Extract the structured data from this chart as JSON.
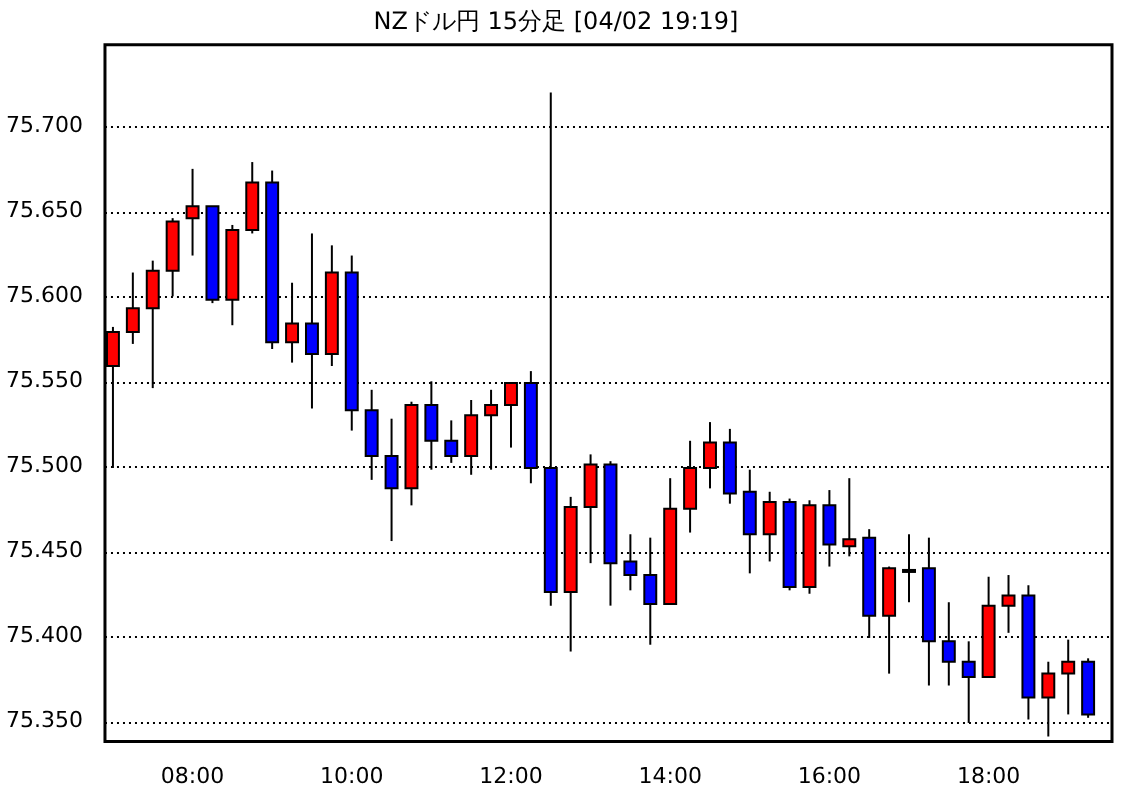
{
  "chart_data": {
    "type": "candlestick",
    "title": "NZドル円 15分足 [04/02 19:19]",
    "x": [
      7,
      7.25,
      7.5,
      7.75,
      8,
      8.25,
      8.5,
      8.75,
      9,
      9.25,
      9.5,
      9.75,
      10,
      10.25,
      10.5,
      10.75,
      11,
      11.25,
      11.5,
      11.75,
      12,
      12.25,
      12.5,
      12.75,
      13,
      13.25,
      13.5,
      13.75,
      14,
      14.25,
      14.5,
      14.75,
      15,
      15.25,
      15.5,
      15.75,
      16,
      16.25,
      16.5,
      16.75,
      17,
      17.25,
      17.5,
      17.75,
      18,
      18.25,
      18.5,
      18.75,
      19,
      19.25
    ],
    "ohlc": [
      [
        75.559,
        75.582,
        75.499,
        75.579
      ],
      [
        75.579,
        75.614,
        75.572,
        75.593
      ],
      [
        75.593,
        75.621,
        75.546,
        75.615
      ],
      [
        75.615,
        75.646,
        75.6,
        75.644
      ],
      [
        75.646,
        75.675,
        75.624,
        75.653
      ],
      [
        75.653,
        75.653,
        75.596,
        75.598
      ],
      [
        75.598,
        75.642,
        75.583,
        75.639
      ],
      [
        75.639,
        75.679,
        75.637,
        75.667
      ],
      [
        75.667,
        75.674,
        75.569,
        75.573
      ],
      [
        75.573,
        75.608,
        75.561,
        75.584
      ],
      [
        75.584,
        75.637,
        75.534,
        75.566
      ],
      [
        75.566,
        75.63,
        75.559,
        75.614
      ],
      [
        75.614,
        75.624,
        75.521,
        75.533
      ],
      [
        75.533,
        75.545,
        75.492,
        75.506
      ],
      [
        75.506,
        75.528,
        75.456,
        75.487
      ],
      [
        75.487,
        75.538,
        75.477,
        75.536
      ],
      [
        75.536,
        75.55,
        75.498,
        75.515
      ],
      [
        75.515,
        75.527,
        75.502,
        75.506
      ],
      [
        75.506,
        75.539,
        75.495,
        75.53
      ],
      [
        75.53,
        75.545,
        75.498,
        75.536
      ],
      [
        75.536,
        75.549,
        75.511,
        75.549
      ],
      [
        75.549,
        75.556,
        75.49,
        75.499
      ],
      [
        75.499,
        75.72,
        75.418,
        75.426
      ],
      [
        75.426,
        75.482,
        75.391,
        75.476
      ],
      [
        75.476,
        75.507,
        75.443,
        75.501
      ],
      [
        75.501,
        75.503,
        75.418,
        75.443
      ],
      [
        75.444,
        75.46,
        75.427,
        75.436
      ],
      [
        75.436,
        75.458,
        75.395,
        75.419
      ],
      [
        75.419,
        75.493,
        75.419,
        75.475
      ],
      [
        75.475,
        75.515,
        75.461,
        75.499
      ],
      [
        75.499,
        75.526,
        75.487,
        75.514
      ],
      [
        75.514,
        75.522,
        75.478,
        75.484
      ],
      [
        75.485,
        75.498,
        75.437,
        75.46
      ],
      [
        75.46,
        75.485,
        75.444,
        75.479
      ],
      [
        75.479,
        75.481,
        75.427,
        75.429
      ],
      [
        75.429,
        75.48,
        75.425,
        75.477
      ],
      [
        75.477,
        75.486,
        75.441,
        75.454
      ],
      [
        75.453,
        75.493,
        75.447,
        75.457
      ],
      [
        75.458,
        75.463,
        75.399,
        75.412
      ],
      [
        75.412,
        75.441,
        75.378,
        75.44
      ],
      [
        75.439,
        75.46,
        75.42,
        75.439
      ],
      [
        75.44,
        75.458,
        75.371,
        75.397
      ],
      [
        75.397,
        75.42,
        75.371,
        75.385
      ],
      [
        75.385,
        75.397,
        75.349,
        75.376
      ],
      [
        75.376,
        75.435,
        75.376,
        75.418
      ],
      [
        75.418,
        75.436,
        75.402,
        75.424
      ],
      [
        75.424,
        75.43,
        75.351,
        75.364
      ],
      [
        75.364,
        75.385,
        75.341,
        75.378
      ],
      [
        75.378,
        75.398,
        75.354,
        75.385
      ],
      [
        75.385,
        75.387,
        75.352,
        75.354
      ]
    ],
    "colors": [
      "#ff0000",
      "#ff0000",
      "#ff0000",
      "#ff0000",
      "#ff0000",
      "#0000ff",
      "#ff0000",
      "#ff0000",
      "#0000ff",
      "#ff0000",
      "#0000ff",
      "#ff0000",
      "#0000ff",
      "#0000ff",
      "#0000ff",
      "#ff0000",
      "#0000ff",
      "#0000ff",
      "#ff0000",
      "#ff0000",
      "#ff0000",
      "#0000ff",
      "#0000ff",
      "#ff0000",
      "#ff0000",
      "#0000ff",
      "#0000ff",
      "#0000ff",
      "#ff0000",
      "#ff0000",
      "#ff0000",
      "#0000ff",
      "#0000ff",
      "#ff0000",
      "#0000ff",
      "#ff0000",
      "#0000ff",
      "#ff0000",
      "#0000ff",
      "#ff0000",
      "#000000",
      "#0000ff",
      "#0000ff",
      "#0000ff",
      "#ff0000",
      "#ff0000",
      "#0000ff",
      "#ff0000",
      "#ff0000",
      "#0000ff"
    ],
    "xlim": [
      6.9,
      19.55
    ],
    "xticks": [
      {
        "value": 8,
        "label": "08:00"
      },
      {
        "value": 10,
        "label": "10:00"
      },
      {
        "value": 12,
        "label": "12:00"
      },
      {
        "value": 14,
        "label": "14:00"
      },
      {
        "value": 16,
        "label": "16:00"
      },
      {
        "value": 18,
        "label": "18:00"
      }
    ],
    "ylim": [
      75.338,
      75.748
    ],
    "yticks": [
      {
        "value": 75.35,
        "label": "75.350"
      },
      {
        "value": 75.4,
        "label": "75.400"
      },
      {
        "value": 75.45,
        "label": "75.450"
      },
      {
        "value": 75.5,
        "label": "75.500"
      },
      {
        "value": 75.55,
        "label": "75.550"
      },
      {
        "value": 75.6,
        "label": "75.600"
      },
      {
        "value": 75.65,
        "label": "75.650"
      },
      {
        "value": 75.7,
        "label": "75.700"
      }
    ],
    "grid": "y",
    "legend": false
  }
}
